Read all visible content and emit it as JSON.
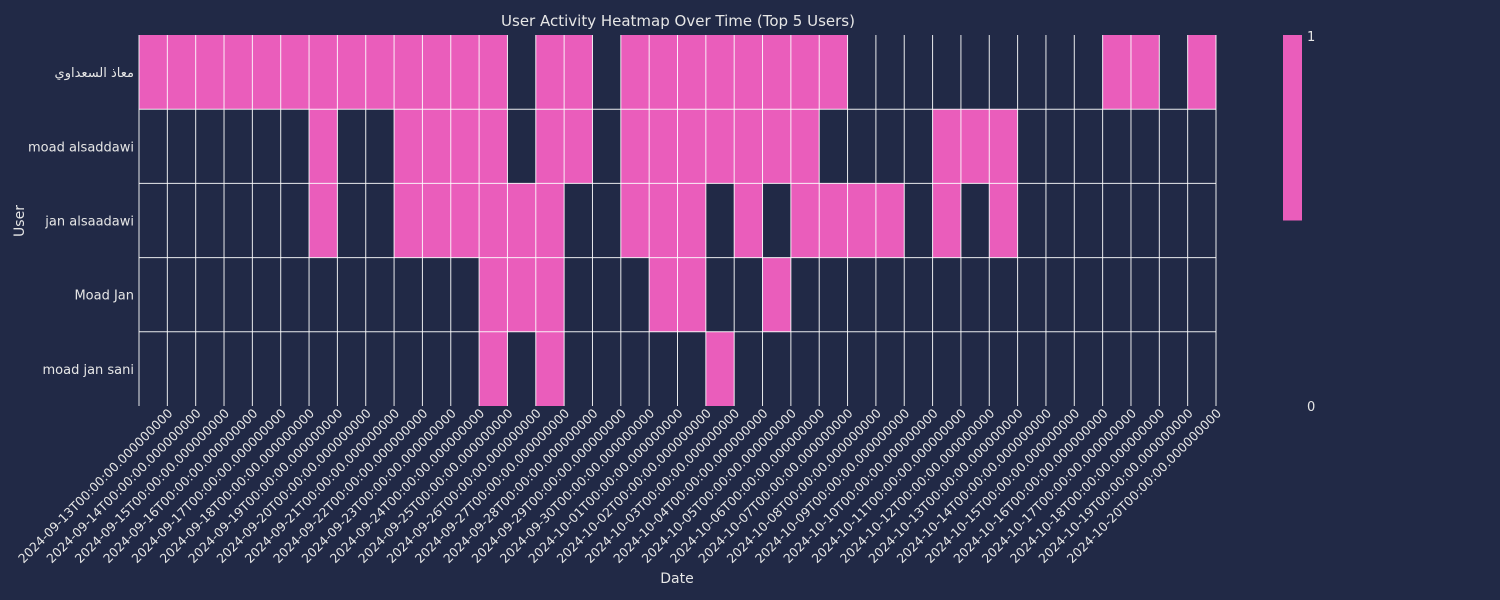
{
  "chart_data": {
    "type": "heatmap",
    "title": "User Activity Heatmap Over Time (Top 5 Users)",
    "xlabel": "Date",
    "ylabel": "User",
    "x": [
      "2024-09-13T00:00:00.000000000",
      "2024-09-14T00:00:00.000000000",
      "2024-09-15T00:00:00.000000000",
      "2024-09-16T00:00:00.000000000",
      "2024-09-17T00:00:00.000000000",
      "2024-09-18T00:00:00.000000000",
      "2024-09-19T00:00:00.000000000",
      "2024-09-20T00:00:00.000000000",
      "2024-09-21T00:00:00.000000000",
      "2024-09-22T00:00:00.000000000",
      "2024-09-23T00:00:00.000000000",
      "2024-09-24T00:00:00.000000000",
      "2024-09-25T00:00:00.000000000",
      "2024-09-26T00:00:00.000000000",
      "2024-09-27T00:00:00.000000000",
      "2024-09-28T00:00:00.000000000",
      "2024-09-29T00:00:00.000000000",
      "2024-09-30T00:00:00.000000000",
      "2024-10-01T00:00:00.000000000",
      "2024-10-02T00:00:00.000000000",
      "2024-10-03T00:00:00.000000000",
      "2024-10-04T00:00:00.000000000",
      "2024-10-05T00:00:00.000000000",
      "2024-10-06T00:00:00.000000000",
      "2024-10-07T00:00:00.000000000",
      "2024-10-08T00:00:00.000000000",
      "2024-10-09T00:00:00.000000000",
      "2024-10-10T00:00:00.000000000",
      "2024-10-11T00:00:00.000000000",
      "2024-10-12T00:00:00.000000000",
      "2024-10-13T00:00:00.000000000",
      "2024-10-14T00:00:00.000000000",
      "2024-10-15T00:00:00.000000000",
      "2024-10-16T00:00:00.000000000",
      "2024-10-17T00:00:00.000000000",
      "2024-10-18T00:00:00.000000000",
      "2024-10-19T00:00:00.000000000",
      "2024-10-20T00:00:00.000000000"
    ],
    "y": [
      "معاذ السعداوي",
      "moad alsaddawi",
      "jan alsaadawi",
      "Moad Jan",
      "moad jan sani"
    ],
    "values": [
      [
        1,
        1,
        1,
        1,
        1,
        1,
        1,
        1,
        1,
        1,
        1,
        1,
        1,
        0,
        1,
        1,
        0,
        1,
        1,
        1,
        1,
        1,
        1,
        1,
        1,
        0,
        0,
        0,
        0,
        0,
        0,
        0,
        0,
        0,
        1,
        1,
        0,
        1
      ],
      [
        0,
        0,
        0,
        0,
        0,
        0,
        1,
        0,
        0,
        1,
        1,
        1,
        1,
        0,
        1,
        1,
        0,
        1,
        1,
        1,
        1,
        1,
        1,
        1,
        0,
        0,
        0,
        0,
        1,
        1,
        1,
        0,
        0,
        0,
        0,
        0,
        0,
        0
      ],
      [
        0,
        0,
        0,
        0,
        0,
        0,
        1,
        0,
        0,
        1,
        1,
        1,
        1,
        1,
        1,
        0,
        0,
        1,
        1,
        1,
        0,
        1,
        0,
        1,
        1,
        1,
        1,
        0,
        1,
        0,
        1,
        0,
        0,
        0,
        0,
        0,
        0,
        0
      ],
      [
        0,
        0,
        0,
        0,
        0,
        0,
        0,
        0,
        0,
        0,
        0,
        0,
        1,
        1,
        1,
        0,
        0,
        0,
        1,
        1,
        0,
        0,
        1,
        0,
        0,
        0,
        0,
        0,
        0,
        0,
        0,
        0,
        0,
        0,
        0,
        0,
        0,
        0
      ],
      [
        0,
        0,
        0,
        0,
        0,
        0,
        0,
        0,
        0,
        0,
        0,
        0,
        1,
        0,
        1,
        0,
        0,
        0,
        0,
        0,
        1,
        0,
        0,
        0,
        0,
        0,
        0,
        0,
        0,
        0,
        0,
        0,
        0,
        0,
        0,
        0,
        0,
        0
      ]
    ],
    "colorbar": {
      "min": 0,
      "max": 1,
      "tick_labels": [
        "0",
        "1"
      ]
    },
    "colors": {
      "active": "#ea5dbb",
      "inactive": "#212946",
      "background": "#212946",
      "grid": "#ffffff",
      "text": "#e6e6e6"
    },
    "grid": true,
    "legend": "colorbar-right"
  }
}
